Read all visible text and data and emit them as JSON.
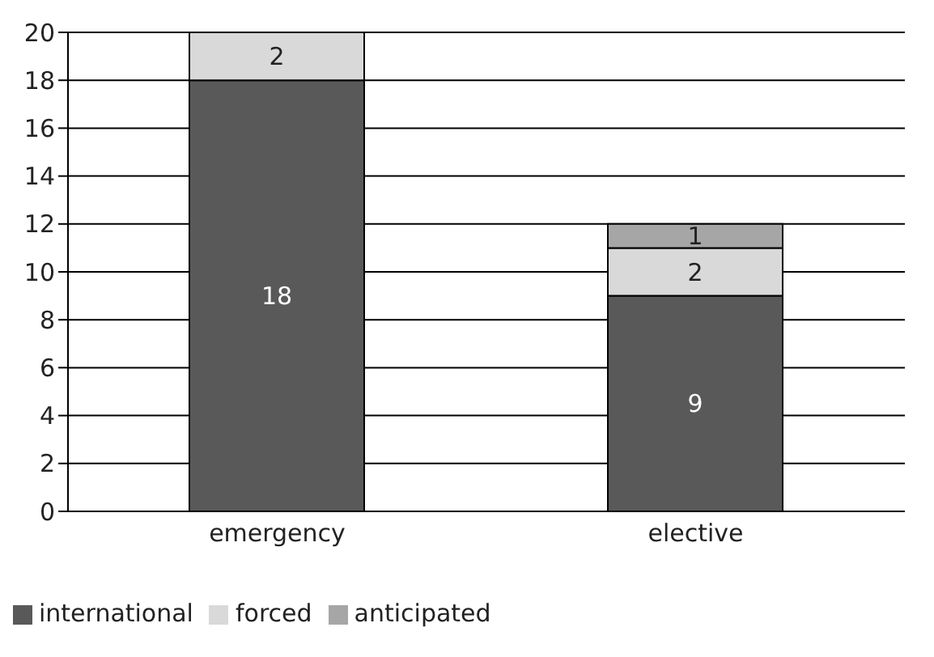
{
  "chart_data": {
    "type": "bar",
    "categories": [
      "emergency",
      "elective"
    ],
    "stacked": true,
    "data_labels": true,
    "grid": "y",
    "legend": "bottom left",
    "ylim": [
      0,
      20
    ],
    "yticks": [
      0,
      2,
      4,
      6,
      8,
      10,
      12,
      14,
      16,
      18,
      20
    ],
    "series": [
      {
        "name": "international",
        "color": "#595959",
        "values": [
          18,
          9
        ]
      },
      {
        "name": "forced",
        "color": "#d9d9d9",
        "values": [
          2,
          2
        ]
      },
      {
        "name": "anticipated",
        "color": "#a6a6a6",
        "values": [
          null,
          1
        ]
      }
    ]
  }
}
